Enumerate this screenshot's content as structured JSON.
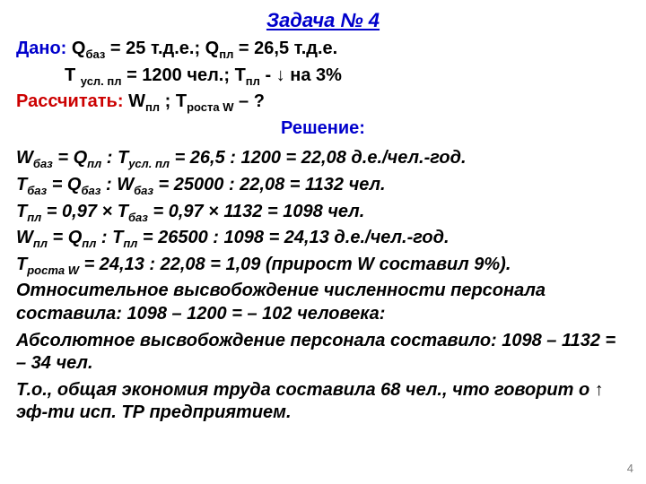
{
  "title": "Задача № 4",
  "given_label": "Дано: ",
  "given_1_a": "Q",
  "given_1_a_sub": "баз",
  "given_1_b": " = 25 т.д.е.; Q",
  "given_1_b_sub": "пл",
  "given_1_c": " = 26,5 т.д.е.",
  "given_2_a": "Т ",
  "given_2_a_sub": "усл. пл",
  "given_2_b": " = 1200 чел.; Т",
  "given_2_b_sub": "пл",
  "given_2_c": " - ↓ на 3%",
  "calc_label": "Рассчитать: ",
  "calc_a": "W",
  "calc_a_sub": "пл",
  "calc_b": " ; Т",
  "calc_b_sub": "роста W",
  "calc_c": " – ?",
  "solution_label": "Решение:",
  "s1_a": "W",
  "s1_a_sub": "баз",
  "s1_b": " = Q",
  "s1_b_sub": "пл",
  "s1_c": " :  Т",
  "s1_c_sub": "усл. пл",
  "s1_d": " = 26,5 : 1200 = 22,08 д.е./чел.-год.",
  "s2_a": "Т",
  "s2_a_sub": "баз",
  "s2_b": " = Q",
  "s2_b_sub": "баз",
  "s2_c": " : W",
  "s2_c_sub": "баз",
  "s2_d": " = 25000 :  22,08 = 1132 чел.",
  "s3_a": "Т",
  "s3_a_sub": "пл",
  "s3_b": " = 0,97 × Т",
  "s3_b_sub": "баз",
  "s3_c": " = 0,97 × 1132 = 1098 чел.",
  "s4_a": "W",
  "s4_a_sub": "пл",
  "s4_b": " = Q",
  "s4_b_sub": "пл",
  "s4_c": " : Т",
  "s4_c_sub": "пл",
  "s4_d": " = 26500 : 1098 = 24,13 д.е./чел.-год.",
  "s5_a": "Т",
  "s5_a_sub": "роста W",
  "s5_b": " = 24,13 : 22,08 = 1,09 (прирост W составил 9%).",
  "s6": "Относительное высвобождение численности персонала составила: 1098 – 1200 = – 102 человека:",
  "s7": "Абсолютное высвобождение персонала составило: 1098 – 1132 =  – 34 чел.",
  "s8": "Т.о., общая экономия труда составила 68 чел., что говорит о ↑ эф-ти исп. ТР предприятием.",
  "page": "4"
}
